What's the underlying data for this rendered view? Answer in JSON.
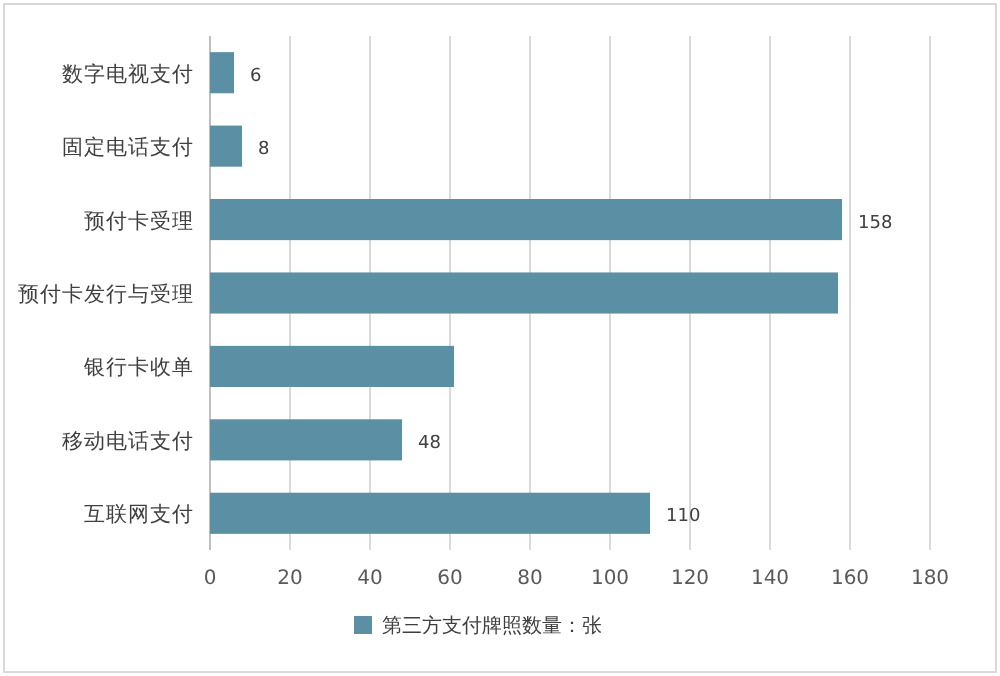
{
  "chart_data": {
    "type": "bar",
    "orientation": "horizontal",
    "categories": [
      "数字电视支付",
      "固定电话支付",
      "预付卡受理",
      "预付卡发行与受理",
      "银行卡收单",
      "移动电话支付",
      "互联网支付"
    ],
    "series": [
      {
        "name": "第三方支付牌照数量：张",
        "color": "#5b8fa3",
        "values": [
          6,
          8,
          158,
          157,
          61,
          48,
          110
        ],
        "value_labels": [
          "6",
          "8",
          "158",
          null,
          null,
          "48",
          "110"
        ]
      }
    ],
    "xlim": [
      0,
      180
    ],
    "xticks": [
      0,
      20,
      40,
      60,
      80,
      100,
      120,
      140,
      160,
      180
    ],
    "grid": "x",
    "legend": "bottom"
  }
}
